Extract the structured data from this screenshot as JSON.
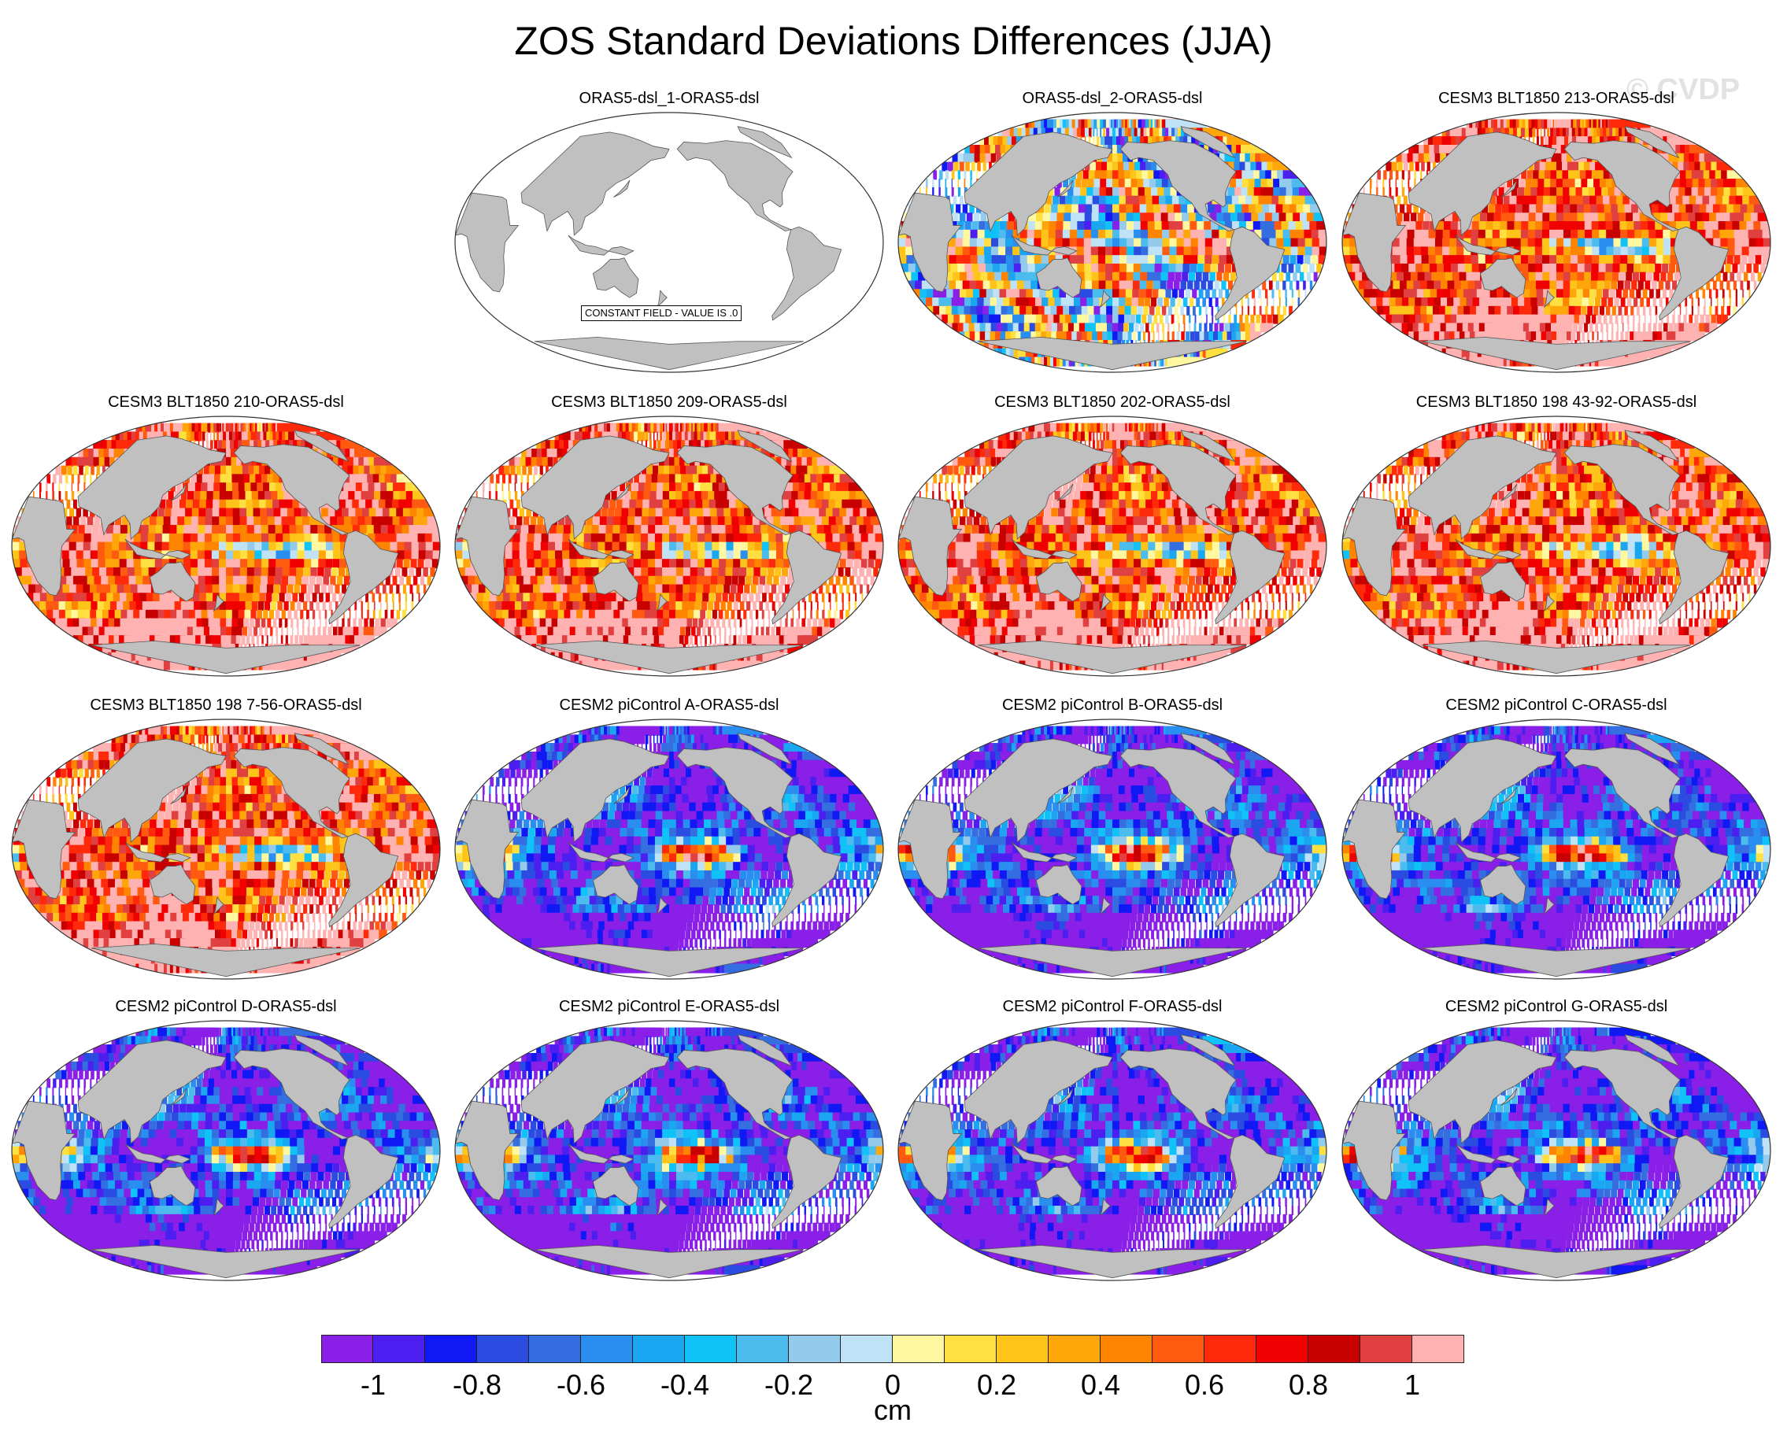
{
  "title": "ZOS Standard Deviations Differences (JJA)",
  "watermark": "© CVDP",
  "panels": [
    {
      "title": "ORAS5-dsl_1-ORAS5-dsl",
      "col": 1,
      "row": 0,
      "pattern": "constant",
      "note": "CONSTANT FIELD - VALUE IS .0"
    },
    {
      "title": "ORAS5-dsl_2-ORAS5-dsl",
      "col": 2,
      "row": 0,
      "pattern": "mixed"
    },
    {
      "title": "CESM3 BLT1850 213-ORAS5-dsl",
      "col": 3,
      "row": 0,
      "pattern": "positive"
    },
    {
      "title": "CESM3 BLT1850 210-ORAS5-dsl",
      "col": 0,
      "row": 1,
      "pattern": "positive"
    },
    {
      "title": "CESM3 BLT1850 209-ORAS5-dsl",
      "col": 1,
      "row": 1,
      "pattern": "positive"
    },
    {
      "title": "CESM3 BLT1850 202-ORAS5-dsl",
      "col": 2,
      "row": 1,
      "pattern": "positive"
    },
    {
      "title": "CESM3 BLT1850 198 43-92-ORAS5-dsl",
      "col": 3,
      "row": 1,
      "pattern": "positive"
    },
    {
      "title": "CESM3 BLT1850 198 7-56-ORAS5-dsl",
      "col": 0,
      "row": 2,
      "pattern": "positive"
    },
    {
      "title": "CESM2 piControl A-ORAS5-dsl",
      "col": 1,
      "row": 2,
      "pattern": "negative"
    },
    {
      "title": "CESM2 piControl B-ORAS5-dsl",
      "col": 2,
      "row": 2,
      "pattern": "negative"
    },
    {
      "title": "CESM2 piControl C-ORAS5-dsl",
      "col": 3,
      "row": 2,
      "pattern": "negative"
    },
    {
      "title": "CESM2 piControl D-ORAS5-dsl",
      "col": 0,
      "row": 3,
      "pattern": "negative"
    },
    {
      "title": "CESM2 piControl E-ORAS5-dsl",
      "col": 1,
      "row": 3,
      "pattern": "negative"
    },
    {
      "title": "CESM2 piControl F-ORAS5-dsl",
      "col": 2,
      "row": 3,
      "pattern": "negative"
    },
    {
      "title": "CESM2 piControl G-ORAS5-dsl",
      "col": 3,
      "row": 3,
      "pattern": "negative"
    }
  ],
  "colorbar": {
    "colors": [
      "#8a1fe8",
      "#4c1ef0",
      "#1018f4",
      "#2a4ce0",
      "#356ee0",
      "#2a8ef0",
      "#1aa6f0",
      "#10c2f8",
      "#4cbcee",
      "#94cbed",
      "#c0e2f6",
      "#fff8a0",
      "#ffe040",
      "#ffc41a",
      "#ffa60a",
      "#ff8400",
      "#ff5a10",
      "#ff2a0a",
      "#f00000",
      "#c80000",
      "#e04040",
      "#ffb2b2"
    ],
    "ticks": [
      "-1",
      "-0.8",
      "-0.6",
      "-0.4",
      "-0.2",
      "0",
      "0.2",
      "0.4",
      "0.6",
      "0.8",
      "1"
    ],
    "unit": "cm"
  },
  "land_color": "#c0c0c0"
}
